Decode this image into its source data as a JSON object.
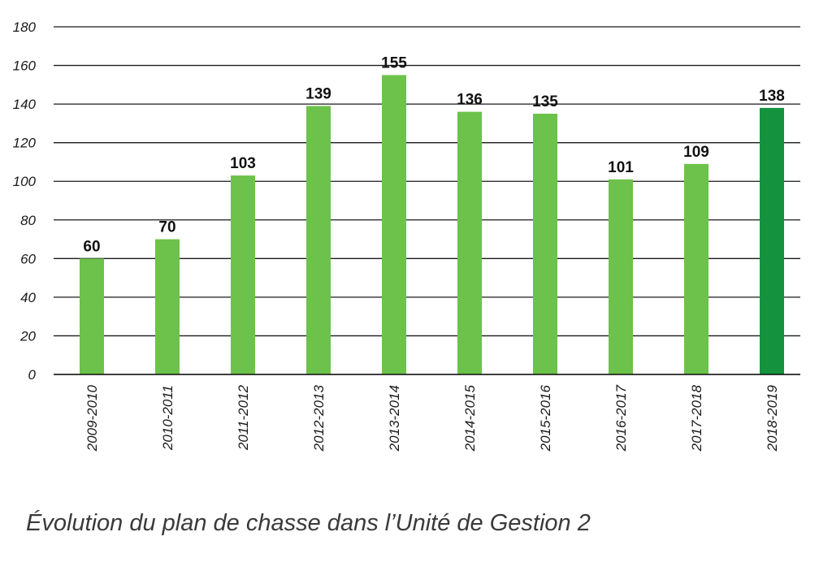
{
  "caption": "Évolution du plan de chasse dans l’Unité de Gestion 2",
  "chart_data": {
    "type": "bar",
    "categories": [
      "2009-2010",
      "2010-2011",
      "2011-2012",
      "2012-2013",
      "2013-2014",
      "2014-2015",
      "2015-2016",
      "2016-2017",
      "2017-2018",
      "2018-2019"
    ],
    "values": [
      60,
      70,
      103,
      139,
      155,
      136,
      135,
      101,
      109,
      138
    ],
    "data_labels": [
      "60",
      "70",
      "103",
      "139",
      "155",
      "136",
      "135",
      "101",
      "109",
      "138"
    ],
    "yticks": [
      "0",
      "20",
      "40",
      "60",
      "80",
      "100",
      "120",
      "140",
      "160",
      "180"
    ],
    "ylim": [
      0,
      180
    ],
    "grid": true,
    "colors": {
      "bar": "#6cc24a",
      "highlight_bar": "#14923e",
      "highlight_index": 9
    }
  }
}
